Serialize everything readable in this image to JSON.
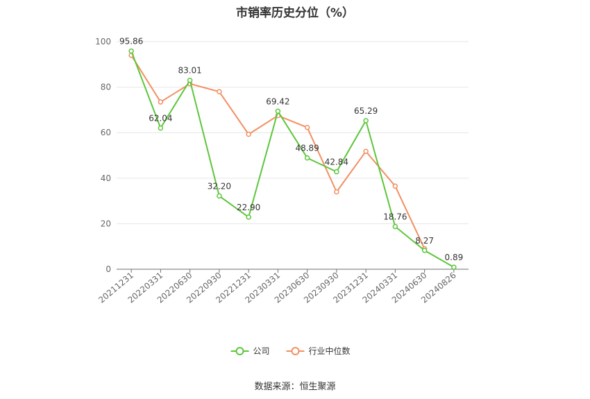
{
  "chart_data": {
    "type": "line",
    "title": "市销率历史分位（%）",
    "source": "数据来源：恒生聚源",
    "categories": [
      "20211231",
      "20220331",
      "20220630",
      "20220930",
      "20221231",
      "20230331",
      "20230630",
      "20230930",
      "20231231",
      "20240331",
      "20240630",
      "20240826"
    ],
    "ylim": [
      0,
      100
    ],
    "yticks": [
      0,
      20,
      40,
      60,
      80,
      100
    ],
    "grid": true,
    "legend_position": "bottom",
    "series": [
      {
        "name": "公司",
        "color": "#5cc63a",
        "values": [
          95.86,
          62.04,
          83.01,
          32.2,
          22.9,
          69.42,
          48.89,
          42.84,
          65.29,
          18.76,
          8.27,
          0.89
        ],
        "labels": [
          "95.86",
          "62.04",
          "83.01",
          "32.20",
          "22.90",
          "69.42",
          "48.89",
          "42.84",
          "65.29",
          "18.76",
          "8.27",
          "0.89"
        ]
      },
      {
        "name": "行业中位数",
        "color": "#f28f62",
        "values": [
          94.0,
          73.5,
          81.5,
          78.0,
          59.3,
          67.5,
          62.3,
          34.0,
          51.8,
          36.5,
          9.0,
          null
        ]
      }
    ]
  }
}
